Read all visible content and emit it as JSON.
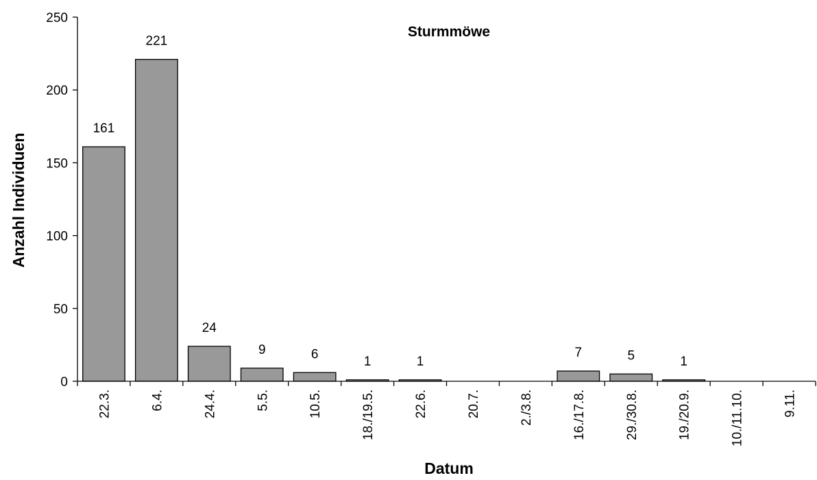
{
  "chart_data": {
    "type": "bar",
    "title": "Sturmmöwe",
    "xlabel": "Datum",
    "ylabel": "Anzahl Individuen",
    "categories": [
      "22.3.",
      "6.4.",
      "24.4.",
      "5.5.",
      "10.5.",
      "18./19.5.",
      "22.6.",
      "20.7.",
      "2./3.8.",
      "16./17.8.",
      "29./30.8.",
      "19./20.9.",
      "10./11.10.",
      "9.11."
    ],
    "values": [
      161,
      221,
      24,
      9,
      6,
      1,
      1,
      0,
      0,
      7,
      5,
      1,
      0,
      0
    ],
    "data_labels": [
      "161",
      "221",
      "24",
      "9",
      "6",
      "1",
      "1",
      "",
      "",
      "7",
      "5",
      "1",
      "",
      ""
    ],
    "ylim": [
      0,
      250
    ],
    "yticks": [
      0,
      50,
      100,
      150,
      200,
      250
    ],
    "grid": false,
    "legend": "none",
    "colors": {
      "bar_fill": "#999999",
      "bar_stroke": "#000000"
    }
  }
}
